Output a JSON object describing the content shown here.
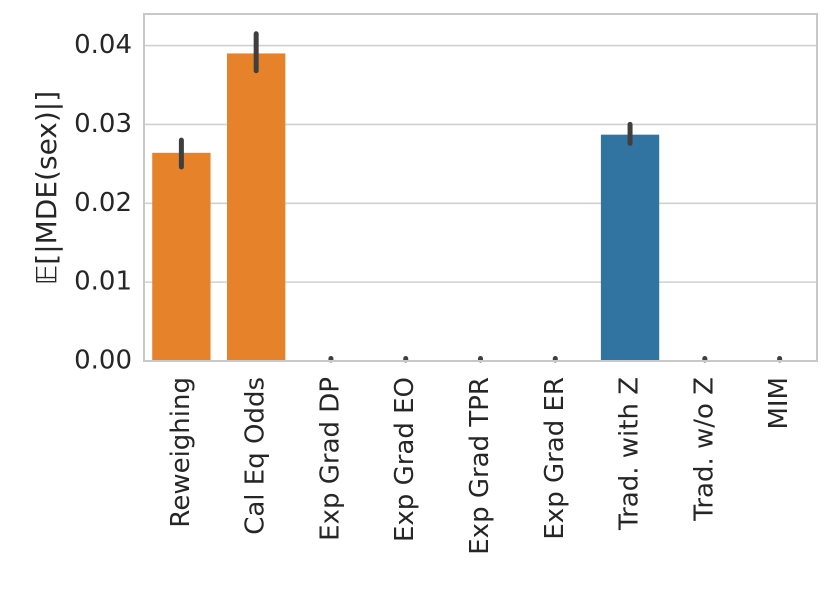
{
  "chart_data": {
    "type": "bar",
    "title": "",
    "xlabel": "",
    "ylabel": "𝔼[|MDE(sex)|]",
    "ylim": [
      0,
      0.044
    ],
    "yticks": [
      0.0,
      0.01,
      0.02,
      0.03,
      0.04
    ],
    "ytick_labels": [
      "0.00",
      "0.01",
      "0.02",
      "0.03",
      "0.04"
    ],
    "grid": true,
    "categories": [
      "Reweighing",
      "Cal Eq Odds",
      "Exp Grad DP",
      "Exp Grad EO",
      "Exp Grad TPR",
      "Exp Grad ER",
      "Trad. with Z",
      "Trad. w/o Z",
      "MIM"
    ],
    "values": [
      0.0264,
      0.039,
      0.0,
      0.0,
      0.0,
      0.0,
      0.0287,
      0.0,
      0.0
    ],
    "error_low": [
      0.0246,
      0.0368,
      0.0,
      0.0,
      0.0,
      0.0,
      0.0276,
      0.0,
      0.0
    ],
    "error_high": [
      0.028,
      0.0415,
      0.0,
      0.0,
      0.0,
      0.0,
      0.03,
      0.0,
      0.0
    ],
    "bar_colors": [
      "#e6832a",
      "#e6832a",
      "#e6832a",
      "#e6832a",
      "#e6832a",
      "#e6832a",
      "#3274a1",
      "#3274a1",
      "#3274a1"
    ]
  }
}
